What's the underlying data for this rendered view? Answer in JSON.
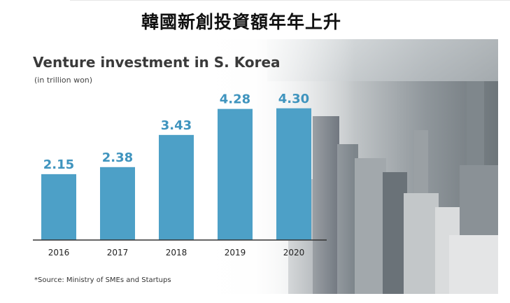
{
  "header": {
    "title": "韓國新創投資額年年上升"
  },
  "colors": {
    "bar": "#4da0c7",
    "label": "#3f94be"
  },
  "chart_data": {
    "type": "bar",
    "title": "Venture investment in S. Korea",
    "subtitle": "(in trillion won)",
    "categories": [
      "2016",
      "2017",
      "2018",
      "2019",
      "2020"
    ],
    "values": [
      2.15,
      2.38,
      3.43,
      4.28,
      4.3
    ],
    "value_labels": [
      "2.15",
      "2.38",
      "3.43",
      "4.28",
      "4.30"
    ],
    "ylim": [
      0,
      4.5
    ],
    "grid": false,
    "legend": "none",
    "source": "*Source: Ministry of SMEs and Startups"
  }
}
